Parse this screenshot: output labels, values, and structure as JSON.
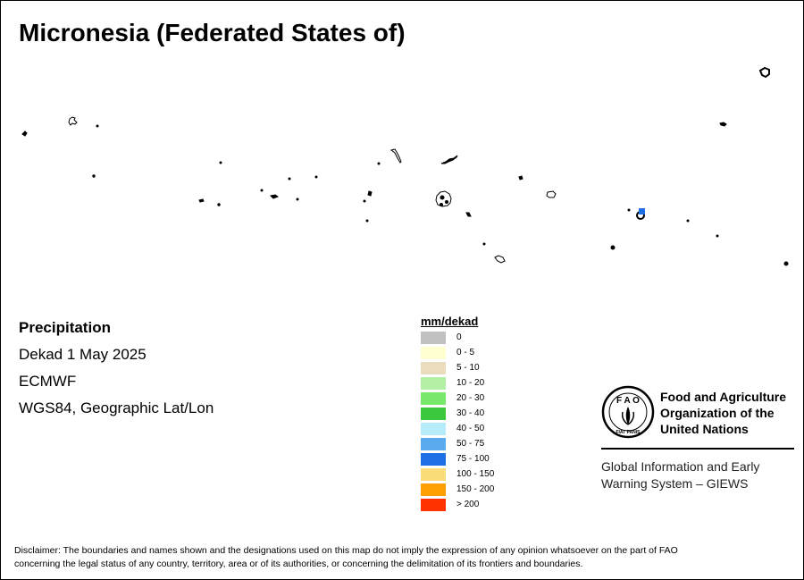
{
  "title": "Micronesia (Federated States of)",
  "info": {
    "variable": "Precipitation",
    "period": "Dekad 1 May 2025",
    "source": "ECMWF",
    "projection": "WGS84, Geographic Lat/Lon"
  },
  "legend": {
    "title": "mm/dekad",
    "items": [
      {
        "label": "0",
        "color": "#c0c0c0"
      },
      {
        "label": "0 - 5",
        "color": "#ffffd0"
      },
      {
        "label": "5 - 10",
        "color": "#ecdcbe"
      },
      {
        "label": "10 - 20",
        "color": "#b4f0a4"
      },
      {
        "label": "20 - 30",
        "color": "#78e86c"
      },
      {
        "label": "30 - 40",
        "color": "#3cc83c"
      },
      {
        "label": "40 - 50",
        "color": "#b4ecfa"
      },
      {
        "label": "50 - 75",
        "color": "#5aaaf0"
      },
      {
        "label": "75 - 100",
        "color": "#1e6ee6"
      },
      {
        "label": "100 - 150",
        "color": "#fadc78"
      },
      {
        "label": "150 - 200",
        "color": "#ffa000"
      },
      {
        "label": "> 200",
        "color": "#ff3200"
      }
    ]
  },
  "fao": {
    "name_line1": "Food and Agriculture",
    "name_line2": "Organization of the",
    "name_line3": "United Nations",
    "giews_line1": "Global Information and Early",
    "giews_line2": "Warning System – GIEWS",
    "emblem_text": "FAO FIAT PANIS"
  },
  "disclaimer": {
    "line1": "Disclaimer: The boundaries and names shown and the designations used on this map do not imply the expression of any opinion whatsoever on the part of FAO",
    "line2": "concerning the legal status of any country, territory, area or of its authorities, or concerning the delimitation of its frontiers and boundaries."
  },
  "map": {
    "island_color": "#000000",
    "highlight_color": "#1e6ee6"
  }
}
